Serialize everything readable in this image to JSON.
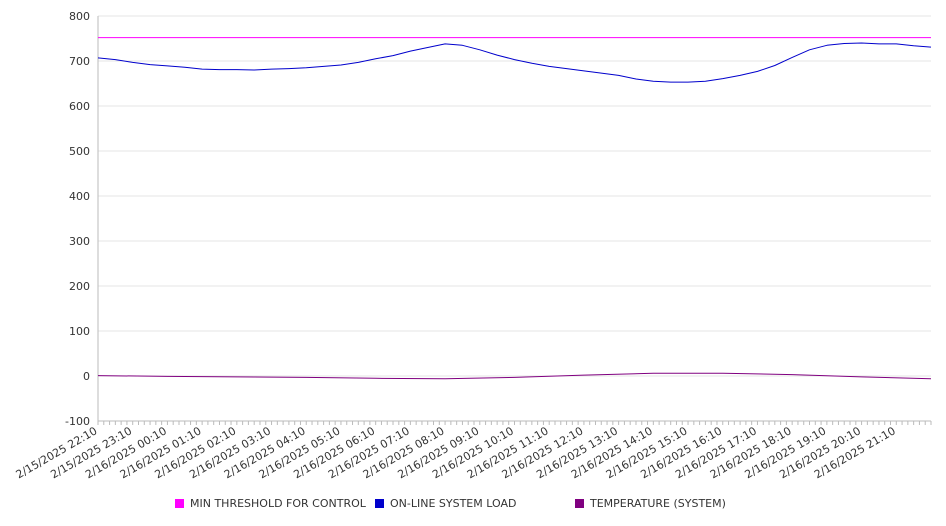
{
  "chart_data": {
    "type": "line",
    "title": "",
    "xlabel": "",
    "ylabel": "",
    "ylim": [
      -100,
      800
    ],
    "yticks": [
      -100,
      0,
      100,
      200,
      300,
      400,
      500,
      600,
      700,
      800
    ],
    "grid": "horizontal",
    "legend_position": "bottom",
    "x_tick_labels": [
      "2/15/2025 22:10",
      "2/15/2025 23:10",
      "2/16/2025 00:10",
      "2/16/2025 01:10",
      "2/16/2025 02:10",
      "2/16/2025 03:10",
      "2/16/2025 04:10",
      "2/16/2025 05:10",
      "2/16/2025 06:10",
      "2/16/2025 07:10",
      "2/16/2025 08:10",
      "2/16/2025 09:10",
      "2/16/2025 10:10",
      "2/16/2025 11:10",
      "2/16/2025 12:10",
      "2/16/2025 13:10",
      "2/16/2025 14:10",
      "2/16/2025 15:10",
      "2/16/2025 16:10",
      "2/16/2025 17:10",
      "2/16/2025 18:10",
      "2/16/2025 19:10",
      "2/16/2025 20:10",
      "2/16/2025 21:10"
    ],
    "x_range": [
      "2/15/2025 22:10",
      "2/16/2025 22:10"
    ],
    "series": [
      {
        "name": "MIN THRESHOLD FOR CONTROL",
        "color": "#ff00ff",
        "x": [
          "2/15/2025 22:10",
          "2/16/2025 22:10"
        ],
        "values": [
          752,
          752
        ]
      },
      {
        "name": "ON-LINE SYSTEM LOAD",
        "color": "#0000cc",
        "x": [
          "2/15/2025 22:10",
          "2/15/2025 22:40",
          "2/15/2025 23:10",
          "2/15/2025 23:40",
          "2/16/2025 00:10",
          "2/16/2025 00:40",
          "2/16/2025 01:10",
          "2/16/2025 01:40",
          "2/16/2025 02:10",
          "2/16/2025 02:40",
          "2/16/2025 03:10",
          "2/16/2025 03:40",
          "2/16/2025 04:10",
          "2/16/2025 04:40",
          "2/16/2025 05:10",
          "2/16/2025 05:40",
          "2/16/2025 06:10",
          "2/16/2025 06:40",
          "2/16/2025 07:10",
          "2/16/2025 07:40",
          "2/16/2025 08:10",
          "2/16/2025 08:40",
          "2/16/2025 09:10",
          "2/16/2025 09:40",
          "2/16/2025 10:10",
          "2/16/2025 10:40",
          "2/16/2025 11:10",
          "2/16/2025 11:40",
          "2/16/2025 12:10",
          "2/16/2025 12:40",
          "2/16/2025 13:10",
          "2/16/2025 13:40",
          "2/16/2025 14:10",
          "2/16/2025 14:40",
          "2/16/2025 15:10",
          "2/16/2025 15:40",
          "2/16/2025 16:10",
          "2/16/2025 16:40",
          "2/16/2025 17:10",
          "2/16/2025 17:40",
          "2/16/2025 18:10",
          "2/16/2025 18:40",
          "2/16/2025 19:10",
          "2/16/2025 19:40",
          "2/16/2025 20:10",
          "2/16/2025 20:40",
          "2/16/2025 21:10",
          "2/16/2025 21:40",
          "2/16/2025 22:10"
        ],
        "values": [
          707,
          703,
          697,
          692,
          689,
          686,
          682,
          681,
          681,
          680,
          682,
          683,
          685,
          688,
          691,
          697,
          705,
          712,
          722,
          730,
          738,
          735,
          725,
          713,
          703,
          695,
          688,
          683,
          678,
          673,
          668,
          660,
          655,
          653,
          653,
          655,
          661,
          668,
          677,
          690,
          708,
          725,
          735,
          739,
          740,
          738,
          738,
          734,
          731
        ]
      },
      {
        "name": "TEMPERATURE (SYSTEM)",
        "color": "#800080",
        "x": [
          "2/15/2025 22:10",
          "2/16/2025 00:10",
          "2/16/2025 02:10",
          "2/16/2025 04:10",
          "2/16/2025 06:10",
          "2/16/2025 08:10",
          "2/16/2025 10:10",
          "2/16/2025 12:10",
          "2/16/2025 14:10",
          "2/16/2025 16:10",
          "2/16/2025 18:10",
          "2/16/2025 20:10",
          "2/16/2025 22:10"
        ],
        "values": [
          1,
          -1,
          -2,
          -3,
          -5,
          -6,
          -3,
          2,
          6,
          6,
          3,
          -2,
          -6
        ]
      }
    ]
  }
}
